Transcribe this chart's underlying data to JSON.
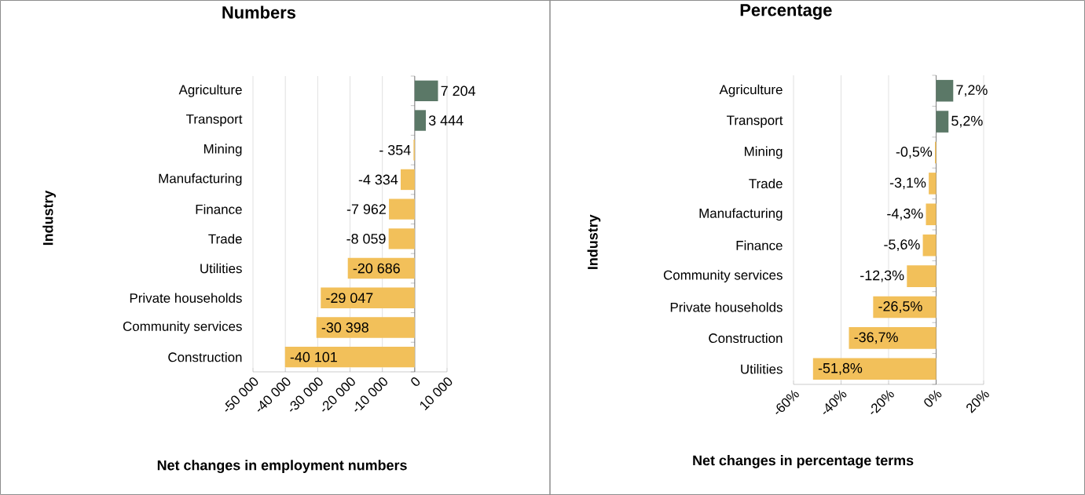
{
  "chart_data": [
    {
      "type": "bar",
      "orientation": "horizontal",
      "title": "Numbers",
      "xlabel": "Net changes in employment numbers",
      "ylabel": "Industry",
      "categories": [
        "Agriculture",
        "Transport",
        "Mining",
        "Manufacturing",
        "Finance",
        "Trade",
        "Utilities",
        "Private households",
        "Community services",
        "Construction"
      ],
      "values": [
        7204,
        3444,
        -354,
        -4334,
        -7962,
        -8059,
        -20686,
        -29047,
        -30398,
        -40101
      ],
      "value_labels": [
        "7 204",
        "3 444",
        "- 354",
        "-4 334",
        "-7 962",
        "-8 059",
        "-20 686",
        "-29 047",
        "-30 398",
        "-40 101"
      ],
      "colors": [
        "#5b7867",
        "#5b7867",
        "#f2c05a",
        "#f2c05a",
        "#f2c05a",
        "#f2c05a",
        "#f2c05a",
        "#f2c05a",
        "#f2c05a",
        "#f2c05a"
      ],
      "xlim": [
        -50000,
        10000
      ],
      "xticks": [
        {
          "value": -50000,
          "label": "-50 000"
        },
        {
          "value": -40000,
          "label": "-40 000"
        },
        {
          "value": -30000,
          "label": "-30 000"
        },
        {
          "value": -20000,
          "label": "-20 000"
        },
        {
          "value": -10000,
          "label": "-10 000"
        },
        0,
        {
          "value": 10000,
          "label": "10 000"
        }
      ],
      "grid": "x"
    },
    {
      "type": "bar",
      "orientation": "horizontal",
      "title": "Percentage",
      "xlabel": "Net changes in percentage terms",
      "ylabel": "Industry",
      "categories": [
        "Agriculture",
        "Transport",
        "Mining",
        "Trade",
        "Manufacturing",
        "Finance",
        "Community services",
        "Private households",
        "Construction",
        "Utilities"
      ],
      "values": [
        7.2,
        5.2,
        -0.5,
        -3.1,
        -4.3,
        -5.6,
        -12.3,
        -26.5,
        -36.7,
        -51.8
      ],
      "value_labels": [
        "7,2%",
        "5,2%",
        "-0,5%",
        "-3,1%",
        "-4,3%",
        "-5,6%",
        "-12,3%",
        "-26,5%",
        "-36,7%",
        "-51,8%"
      ],
      "colors": [
        "#5b7867",
        "#5b7867",
        "#f2c05a",
        "#f2c05a",
        "#f2c05a",
        "#f2c05a",
        "#f2c05a",
        "#f2c05a",
        "#f2c05a",
        "#f2c05a"
      ],
      "xlim": [
        -60,
        20
      ],
      "xticks": [
        {
          "value": -60,
          "label": "-60%"
        },
        {
          "value": -40,
          "label": "-40%"
        },
        {
          "value": -20,
          "label": "-20%"
        },
        {
          "value": 0,
          "label": "0%"
        },
        {
          "value": 20,
          "label": "20%"
        }
      ],
      "grid": "x"
    }
  ]
}
